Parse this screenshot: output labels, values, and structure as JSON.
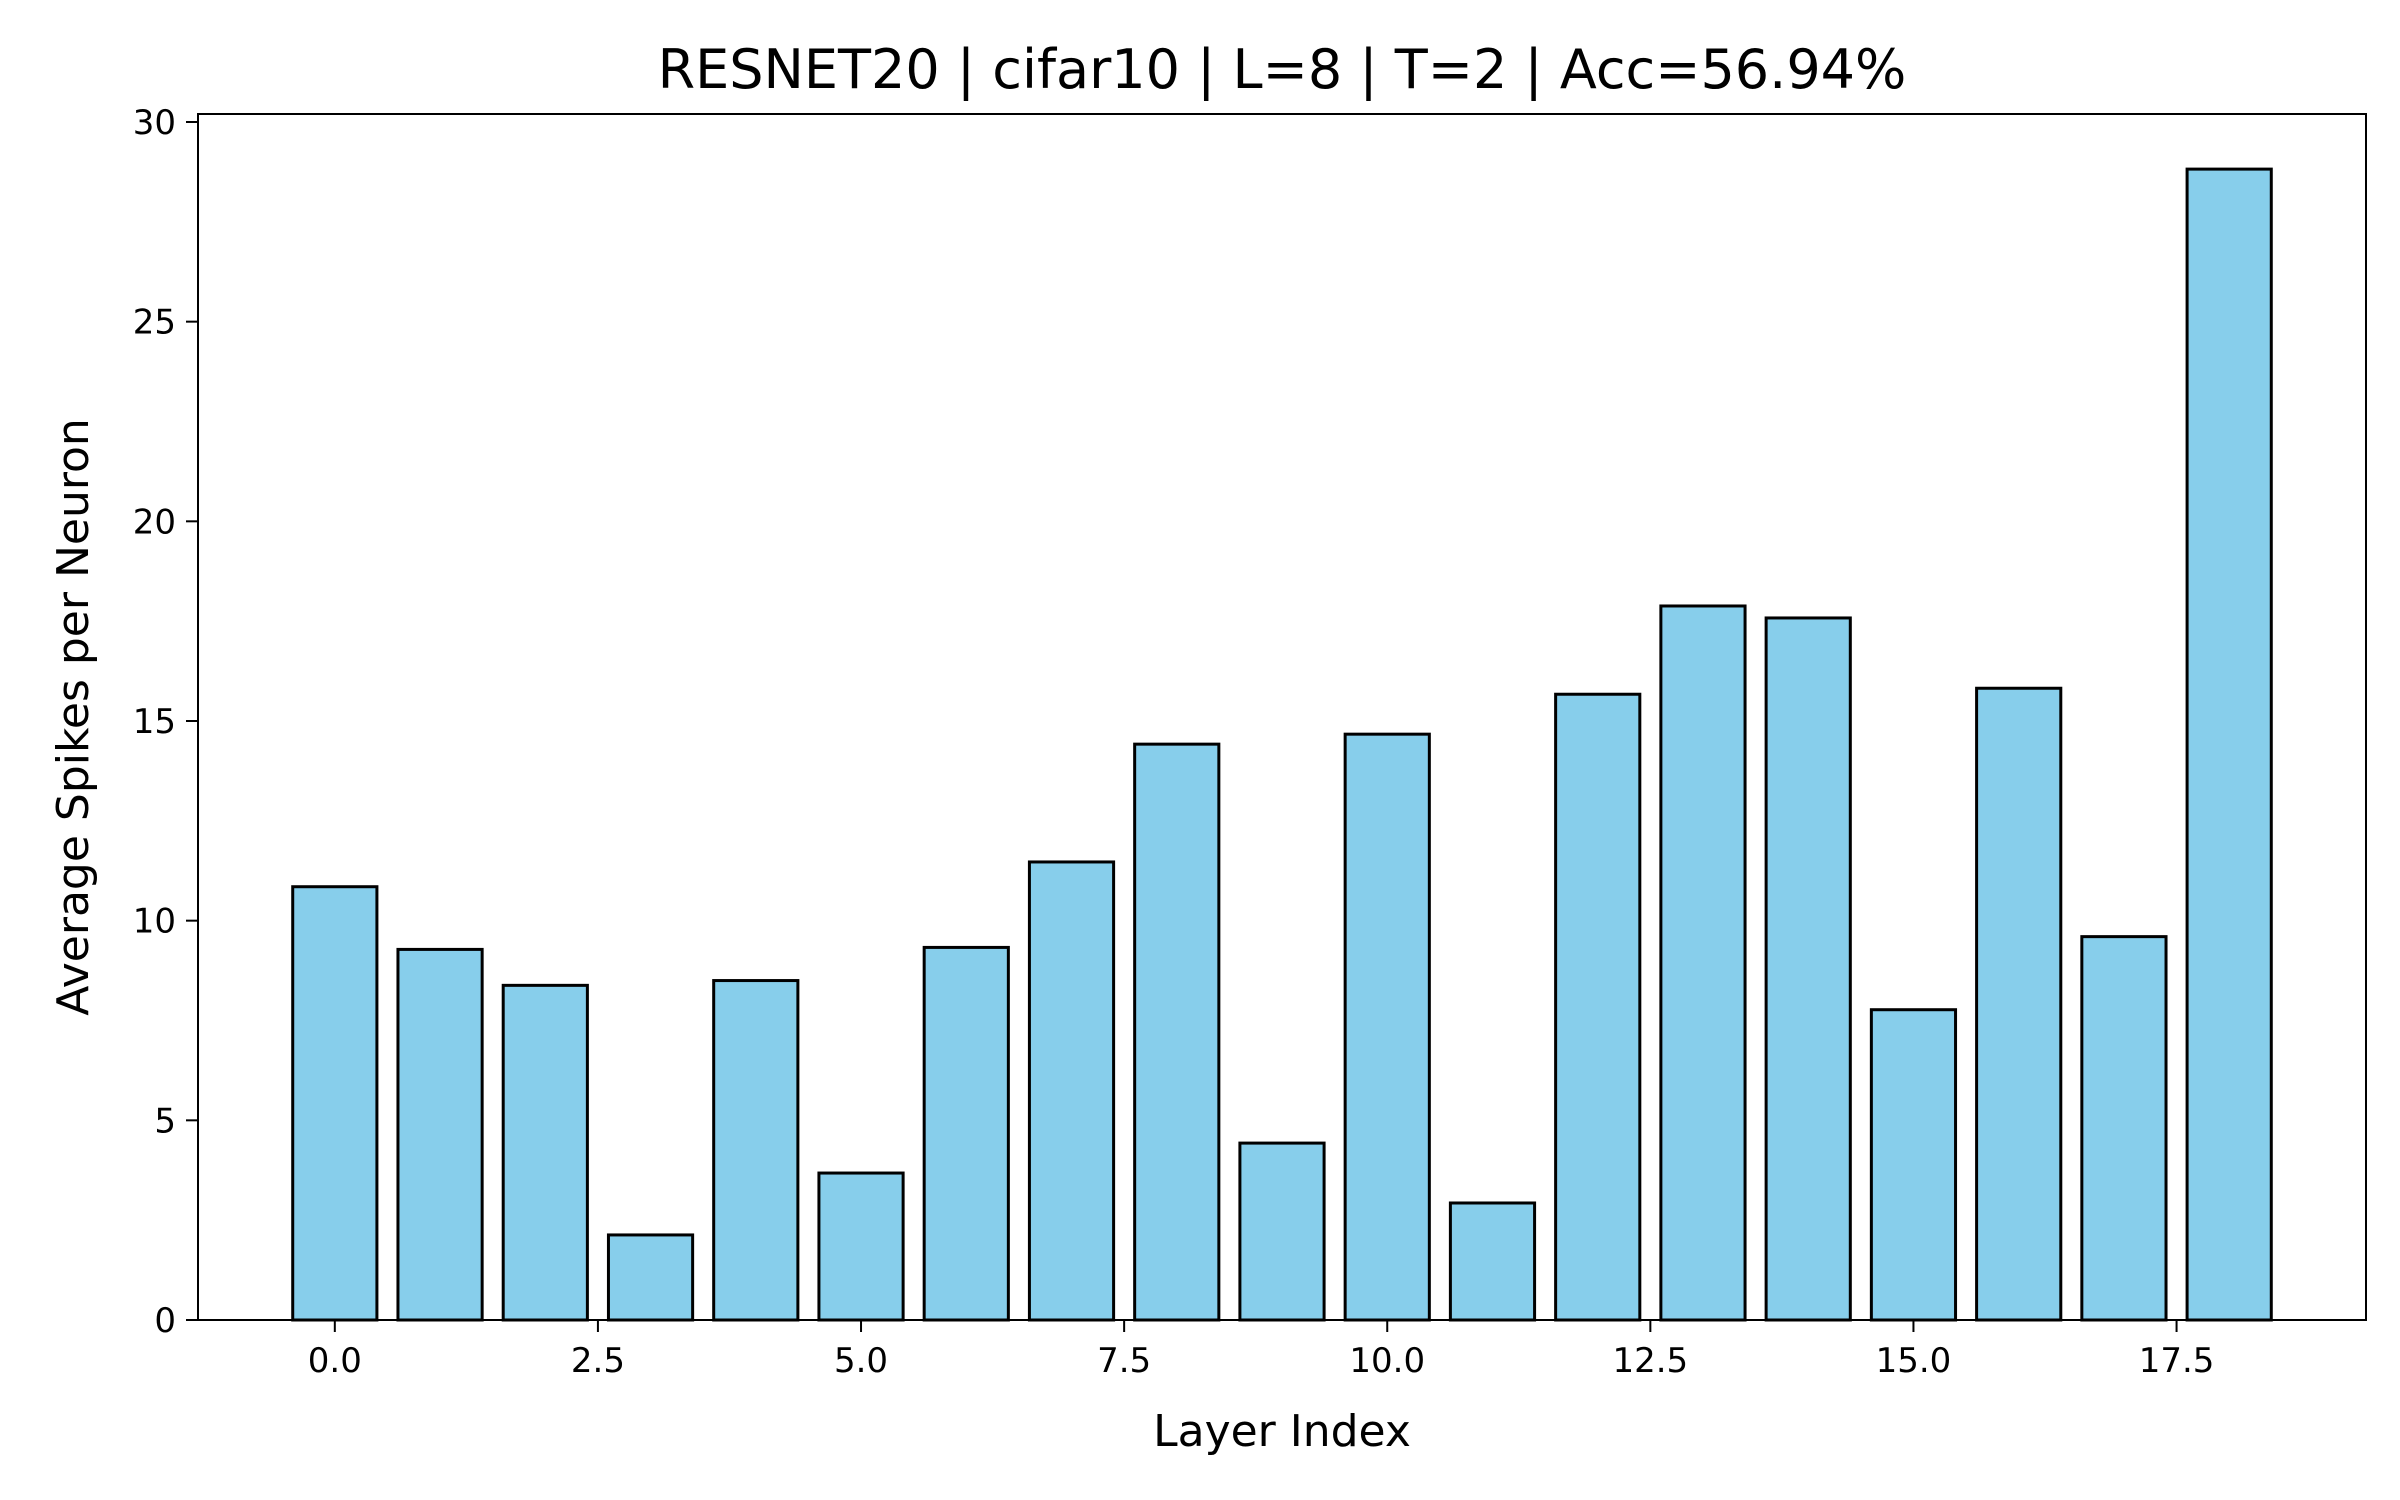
{
  "chart_data": {
    "type": "bar",
    "title": "RESNET20 | cifar10 | L=8 | T=2 | Acc=56.94%",
    "xlabel": "Layer Index",
    "ylabel": "Average Spikes per Neuron",
    "x": [
      0,
      1,
      2,
      3,
      4,
      5,
      6,
      7,
      8,
      9,
      10,
      11,
      12,
      13,
      14,
      15,
      16,
      17,
      18
    ],
    "values": [
      10.85,
      9.28,
      8.38,
      2.13,
      8.5,
      3.68,
      9.33,
      11.47,
      14.42,
      4.43,
      14.67,
      2.93,
      15.67,
      17.88,
      17.58,
      7.77,
      15.82,
      9.6,
      28.82
    ],
    "xlim": [
      -1.3,
      19.3
    ],
    "ylim": [
      0,
      30.2
    ],
    "xticks": [
      0.0,
      2.5,
      5.0,
      7.5,
      10.0,
      12.5,
      15.0,
      17.5
    ],
    "xtick_labels": [
      "0.0",
      "2.5",
      "5.0",
      "7.5",
      "10.0",
      "12.5",
      "15.0",
      "17.5"
    ],
    "yticks": [
      0,
      5,
      10,
      15,
      20,
      25,
      30
    ],
    "ytick_labels": [
      "0",
      "5",
      "10",
      "15",
      "20",
      "25",
      "30"
    ],
    "bar_color": "#87CEEB",
    "edge_color": "#000000",
    "grid": false
  }
}
